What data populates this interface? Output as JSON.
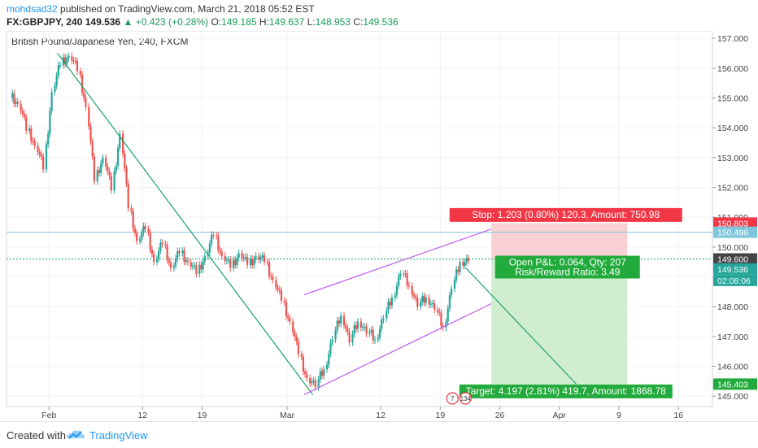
{
  "header": {
    "author": "mohdsad32",
    "published": " published on TradingView.com, March 21, 2018 05:52 EST",
    "symbol": "FX:GBPJPY, 240",
    "last": "149.536",
    "change_arrow": "▲",
    "change": "+0.423 (+0.28%)",
    "o_label": "O:",
    "o": "149.185",
    "h_label": "H:",
    "h": "149.637",
    "l_label": "L:",
    "l": "148.953",
    "c_label": "C:",
    "c": "149.536"
  },
  "footer": {
    "created": "Created with",
    "brand": "TradingView"
  },
  "colors": {
    "up": "#26a69a",
    "down": "#ef5350",
    "trend": "#1aa36f",
    "channel": "#c15cf0",
    "stop_zone": "#f8c9cc",
    "target_zone": "#c8eac8",
    "stop_badge": "#f23645",
    "target_badge": "#22ab3c",
    "price_line": "#1aa36f",
    "hline": "#7fc6dc"
  },
  "chart_data": {
    "type": "candlestick",
    "title": "British Pound/Japanese Yen, 240, FXCM",
    "ylim": [
      144.65,
      157.25
    ],
    "yticks": [
      145.0,
      146.0,
      147.0,
      148.0,
      149.0,
      150.0,
      151.0,
      152.0,
      153.0,
      154.0,
      155.0,
      156.0,
      157.0
    ],
    "ytick_labels": [
      "145.000",
      "146.000",
      "147.000",
      "148.000",
      "149.000",
      "150.000",
      "151.000",
      "152.000",
      "153.000",
      "154.000",
      "155.000",
      "156.000",
      "157.000"
    ],
    "xdomain": [
      "2018-01-27",
      "2018-04-20"
    ],
    "xticks": [
      {
        "date": "2018-02-01",
        "label": "Feb"
      },
      {
        "date": "2018-02-12",
        "label": "12"
      },
      {
        "date": "2018-02-19",
        "label": "19"
      },
      {
        "date": "2018-03-01",
        "label": "Mar"
      },
      {
        "date": "2018-03-12",
        "label": "12"
      },
      {
        "date": "2018-03-19",
        "label": "19"
      },
      {
        "date": "2018-03-26",
        "label": "26"
      },
      {
        "date": "2018-04-02",
        "label": "Apr"
      },
      {
        "date": "2018-04-09",
        "label": "9"
      },
      {
        "date": "2018-04-16",
        "label": "16"
      }
    ],
    "candles": [
      [
        "2018-01-28",
        155.0,
        154.8
      ],
      [
        "2018-01-29",
        154.8,
        153.9
      ],
      [
        "2018-01-30",
        153.9,
        153.4
      ],
      [
        "2018-01-31",
        153.4,
        152.6
      ],
      [
        "2018-02-01",
        152.6,
        155.2
      ],
      [
        "2018-02-02",
        155.2,
        156.1
      ],
      [
        "2018-02-03",
        156.1,
        156.4
      ],
      [
        "2018-02-04",
        156.4,
        155.9
      ],
      [
        "2018-02-05",
        155.9,
        154.7
      ],
      [
        "2018-02-06",
        154.7,
        152.2
      ],
      [
        "2018-02-07",
        152.2,
        153.0
      ],
      [
        "2018-02-08",
        153.0,
        151.9
      ],
      [
        "2018-02-09",
        151.9,
        153.8
      ],
      [
        "2018-02-10",
        153.8,
        151.3
      ],
      [
        "2018-02-11",
        151.3,
        150.2
      ],
      [
        "2018-02-12",
        150.2,
        150.6
      ],
      [
        "2018-02-13",
        150.6,
        149.5
      ],
      [
        "2018-02-14",
        149.5,
        150.1
      ],
      [
        "2018-02-15",
        150.1,
        149.3
      ],
      [
        "2018-02-16",
        149.3,
        149.8
      ],
      [
        "2018-02-17",
        149.8,
        149.5
      ],
      [
        "2018-02-18",
        149.5,
        149.1
      ],
      [
        "2018-02-19",
        149.1,
        149.7
      ],
      [
        "2018-02-20",
        149.7,
        150.4
      ],
      [
        "2018-02-21",
        150.4,
        149.7
      ],
      [
        "2018-02-22",
        149.7,
        149.3
      ],
      [
        "2018-02-23",
        149.3,
        149.8
      ],
      [
        "2018-02-24",
        149.8,
        149.4
      ],
      [
        "2018-02-25",
        149.4,
        149.7
      ],
      [
        "2018-02-26",
        149.7,
        149.5
      ],
      [
        "2018-02-27",
        149.5,
        148.9
      ],
      [
        "2018-02-28",
        148.9,
        148.2
      ],
      [
        "2018-03-01",
        148.2,
        147.5
      ],
      [
        "2018-03-02",
        147.5,
        146.4
      ],
      [
        "2018-03-03",
        146.4,
        145.6
      ],
      [
        "2018-03-04",
        145.6,
        145.3
      ],
      [
        "2018-03-05",
        145.3,
        145.9
      ],
      [
        "2018-03-06",
        145.9,
        146.9
      ],
      [
        "2018-03-07",
        146.9,
        147.7
      ],
      [
        "2018-03-08",
        147.7,
        146.8
      ],
      [
        "2018-03-09",
        146.8,
        147.5
      ],
      [
        "2018-03-10",
        147.5,
        147.1
      ],
      [
        "2018-03-11",
        147.1,
        146.9
      ],
      [
        "2018-03-12",
        146.9,
        147.6
      ],
      [
        "2018-03-13",
        147.6,
        148.3
      ],
      [
        "2018-03-14",
        148.3,
        149.1
      ],
      [
        "2018-03-15",
        149.1,
        148.7
      ],
      [
        "2018-03-16",
        148.7,
        148.0
      ],
      [
        "2018-03-17",
        148.0,
        148.3
      ],
      [
        "2018-03-18",
        148.3,
        147.9
      ],
      [
        "2018-03-19",
        147.9,
        147.3
      ],
      [
        "2018-03-20",
        147.3,
        148.6
      ],
      [
        "2018-03-21",
        148.6,
        149.5
      ],
      [
        "2018-03-22",
        149.5,
        149.536
      ]
    ],
    "trend_lines": [
      {
        "from": [
          "2018-02-02",
          156.5
        ],
        "to": [
          "2018-03-04",
          145.05
        ]
      },
      {
        "from": [
          "2018-03-22",
          149.3
        ],
        "to": [
          "2018-04-04",
          145.4
        ]
      }
    ],
    "channel": [
      {
        "from": [
          "2018-03-03",
          148.4
        ],
        "to": [
          "2018-03-25",
          150.6
        ]
      },
      {
        "from": [
          "2018-03-03",
          145.05
        ],
        "to": [
          "2018-03-25",
          148.1
        ]
      }
    ],
    "horizontal_lines": [
      {
        "y": 150.496,
        "style": "solid"
      },
      {
        "y": 149.6,
        "style": "dotted"
      }
    ],
    "position": {
      "x_start": "2018-03-25",
      "x_end": "2018-04-10",
      "entry": 149.6,
      "stop": 150.803,
      "target": 145.403,
      "stop_label": "Stop: 1.203 (0.80%) 120.3, Amount: 750.98",
      "pl_label": "Open P&L: 0.064, Qty: 207",
      "rr_label": "Risk/Reward Ratio: 3.49",
      "target_label": "Target: 4.197 (2.81%) 419.7, Amount: 1868.78"
    },
    "price_labels": [
      {
        "y": 150.803,
        "text": "150.803",
        "kind": "stop"
      },
      {
        "y": 150.496,
        "text": "150.496",
        "kind": "line"
      },
      {
        "y": 149.6,
        "text": "149.600",
        "kind": "entry"
      },
      {
        "y": 149.536,
        "text": "149.536",
        "kind": "last"
      },
      {
        "y": 145.403,
        "text": "145.403",
        "kind": "target"
      }
    ],
    "countdown": "02:08:06",
    "event_badges": [
      "7",
      "134"
    ]
  }
}
